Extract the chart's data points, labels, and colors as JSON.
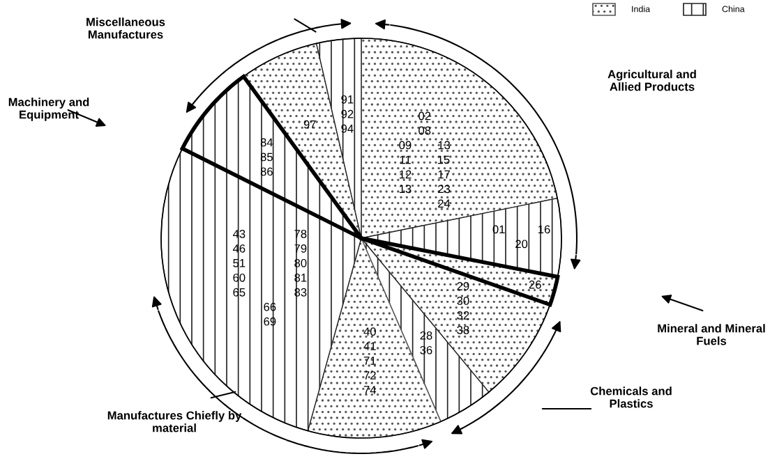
{
  "chart_data": {
    "type": "pie",
    "categories": [
      "02\n08\n09        13\n11        15\n12        17\n13        23\n            24",
      "01          16\n20",
      "26",
      "29\n30\n32\n38",
      "28\n36",
      "40\n41\n71\n72\n74",
      "43               78\n46               79\n51               80\n60               81\n65               83\n66\n69",
      "84\n85\n86",
      "97",
      "91\n92\n94"
    ],
    "values": [
      21.8,
      6.3,
      2.3,
      8.6,
      4.5,
      10.8,
      28.1,
      7.6,
      6.4,
      3.6
    ],
    "colors": [
      "#555555",
      "#222222",
      "#555555",
      "#555555",
      "#222222",
      "#555555",
      "#222222",
      "#222222",
      "#555555",
      "#222222"
    ],
    "annotations": [
      "Miscellaneous\nManufactures",
      "Agricultural and\nAllied Products",
      "Machinery and\nEquipment",
      "Mineral and Mineral\nFuels",
      "Chemicals and\nPlastics",
      "Manufactures Chiefly by\nmaterial",
      "India",
      "China"
    ]
  }
}
